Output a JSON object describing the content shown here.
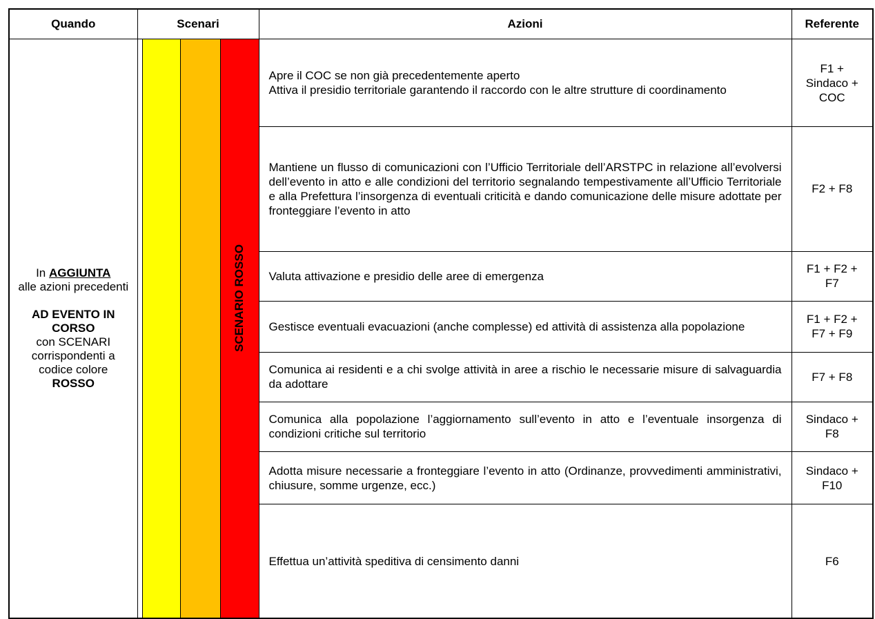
{
  "table": {
    "header": [
      "Quando",
      "Scenari",
      "Azioni",
      "Referente"
    ],
    "quando": [
      "In",
      "AGGIUNTA",
      "alle azioni precedenti",
      "AD EVENTO IN CORSO",
      "con SCENARI corrispondenti a codice colore",
      "ROSSO"
    ],
    "scenario": "SCENARIO ROSSO",
    "rows": [
      {
        "azioni": [
          "Apre il COC se non già precedentemente aperto",
          "Attiva il presidio territoriale garantendo il raccordo con le altre strutture di coordinamento"
        ],
        "referente": "F1 + Sindaco + COC"
      },
      {
        "azioni": [
          "Mantiene un flusso di comunicazioni con l’Ufficio Territoriale dell’ARSTPC in relazione all’evolversi dell’evento in atto e alle condizioni del territorio segnalando tempestivamente all’Ufficio Territoriale e alla Prefettura l’insorgenza di eventuali criticità e dando comunicazione delle misure adottate per fronteggiare l’evento in atto"
        ],
        "referente": "F2 + F8"
      },
      {
        "azioni": [
          "Valuta attivazione e presidio delle aree di emergenza"
        ],
        "referente": "F1 + F2 + F7"
      },
      {
        "azioni": [
          "Gestisce eventuali evacuazioni (anche complesse) ed attività di assistenza alla popolazione"
        ],
        "referente": "F1 + F2 + F7 + F9"
      },
      {
        "azioni": [
          "Comunica ai residenti e a chi svolge attività in aree a rischio le necessarie misure di salvaguardia da adottare"
        ],
        "referente": "F7 + F8"
      },
      {
        "azioni": [
          "Comunica alla popolazione l’aggiornamento sull’evento in atto e l’eventuale insorgenza di condizioni critiche sul territorio"
        ],
        "referente": "Sindaco + F8"
      },
      {
        "azioni": [
          "Adotta misure necessarie a fronteggiare l’evento in atto (Ordinanze, provvedimenti amministrativi, chiusure, somme urgenze, ecc.)"
        ],
        "referente": "Sindaco + F10"
      },
      {
        "azioni": [
          "Effettua un’attività speditiva di censimento danni"
        ],
        "referente": "F6"
      }
    ]
  }
}
